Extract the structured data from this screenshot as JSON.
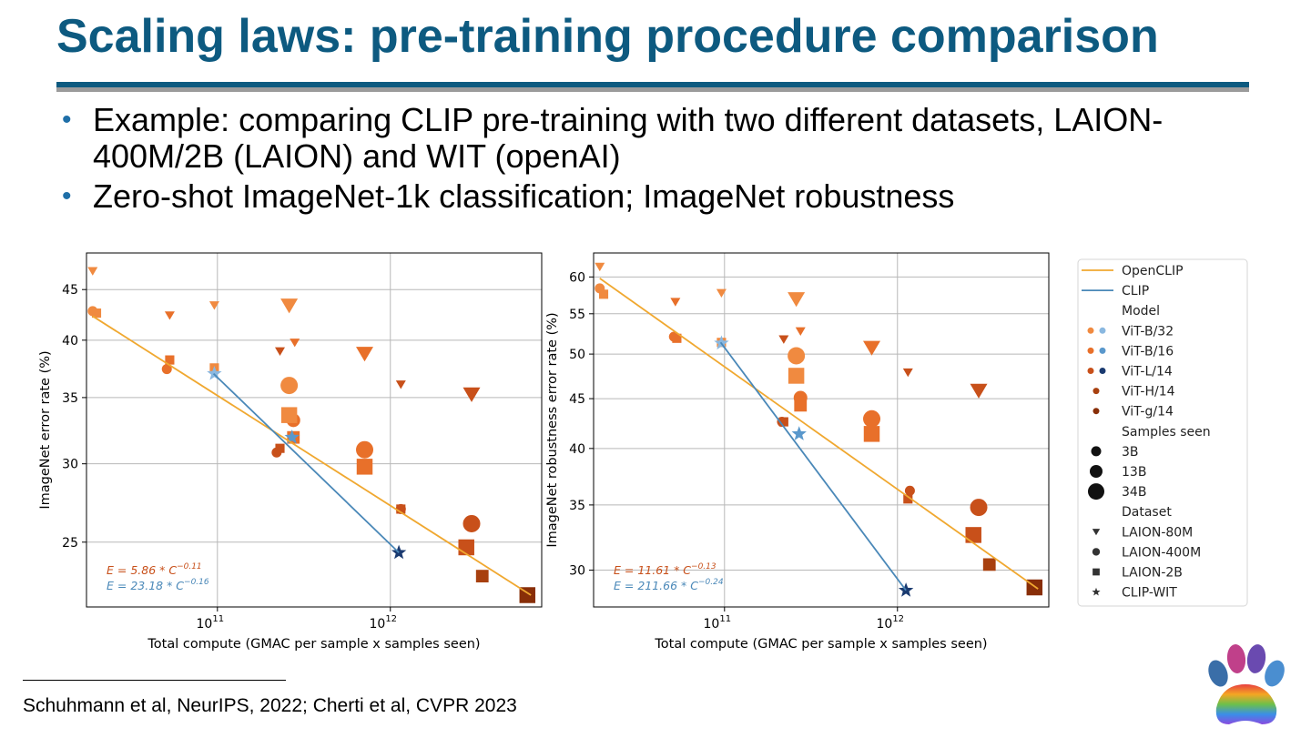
{
  "slide": {
    "title": "Scaling laws: pre-training procedure comparison",
    "bullets": [
      "Example: comparing CLIP pre-training with two different datasets, LAION-400M/2B (LAION) and WIT (openAI)",
      "Zero-shot ImageNet-1k classification; ImageNet robustness"
    ],
    "citation": "Schuhmann et al, NeurIPS, 2022; Cherti et al, CVPR 2023",
    "logo_icon": "rainbow-paw-logo-icon"
  },
  "colors": {
    "title": "#0d5a80",
    "openclip": "#f0a830",
    "clip": "#4a88b8",
    "vit_b32": "#f08a40",
    "vit_b16": "#e8702a",
    "vit_l14": "#c8501a",
    "vit_h14": "#a8400f",
    "vit_g14": "#882e08",
    "clip_b32": "#8ab8e0",
    "clip_b16": "#5a98cc",
    "clip_l14": "#1a3a70"
  },
  "chart_data": [
    {
      "type": "scatter",
      "title": "",
      "xlabel": "Total compute (GMAC per sample x samples seen)",
      "ylabel": "ImageNet error rate (%)",
      "xscale": "log",
      "yscale": "log",
      "xlim": [
        17500000000.0,
        7500000000000.0
      ],
      "ylim": [
        21.5,
        49
      ],
      "xticks": [
        {
          "v": 100000000000.0,
          "b": "10",
          "e": "11"
        },
        {
          "v": 1000000000000.0,
          "b": "10",
          "e": "12"
        }
      ],
      "yticks": [
        25,
        30,
        35,
        40,
        45
      ],
      "grid": true,
      "fits": [
        {
          "name": "OpenCLIP",
          "label_prefix": "E = 5.86 * C",
          "exponent": "−0.11",
          "from": [
            19000000000.0,
            42.3
          ],
          "to": [
            6500000000000.0,
            22.1
          ]
        },
        {
          "name": "CLIP",
          "label_prefix": "E = 23.18 * C",
          "exponent": "−0.16",
          "from": [
            95000000000.0,
            37.0
          ],
          "to": [
            1120000000000.0,
            24.4
          ]
        }
      ],
      "points": [
        {
          "x": 19000000000.0,
          "y": 47.0,
          "m": "v",
          "model": "ViT-B/32",
          "samples": "3B",
          "dataset": "LAION-80M"
        },
        {
          "x": 53000000000.0,
          "y": 42.4,
          "m": "v",
          "model": "ViT-B/16",
          "samples": "3B",
          "dataset": "LAION-80M"
        },
        {
          "x": 96000000000.0,
          "y": 43.4,
          "m": "v",
          "model": "ViT-B/32",
          "samples": "3B",
          "dataset": "LAION-80M"
        },
        {
          "x": 260000000000.0,
          "y": 43.4,
          "m": "v",
          "model": "ViT-B/32",
          "samples": "34B",
          "dataset": "LAION-80M"
        },
        {
          "x": 230000000000.0,
          "y": 39.0,
          "m": "v",
          "model": "ViT-L/14",
          "samples": "3B",
          "dataset": "LAION-80M"
        },
        {
          "x": 280000000000.0,
          "y": 39.8,
          "m": "v",
          "model": "ViT-B/16",
          "samples": "3B",
          "dataset": "LAION-80M"
        },
        {
          "x": 710000000000.0,
          "y": 38.8,
          "m": "v",
          "model": "ViT-B/16",
          "samples": "34B",
          "dataset": "LAION-80M"
        },
        {
          "x": 1150000000000.0,
          "y": 36.1,
          "m": "v",
          "model": "ViT-L/14",
          "samples": "3B",
          "dataset": "LAION-80M"
        },
        {
          "x": 2950000000000.0,
          "y": 35.3,
          "m": "v",
          "model": "ViT-L/14",
          "samples": "34B",
          "dataset": "LAION-80M"
        },
        {
          "x": 19000000000.0,
          "y": 42.8,
          "m": "o",
          "model": "ViT-B/32",
          "samples": "3B",
          "dataset": "LAION-400M"
        },
        {
          "x": 51000000000.0,
          "y": 37.4,
          "m": "o",
          "model": "ViT-B/16",
          "samples": "3B",
          "dataset": "LAION-400M"
        },
        {
          "x": 220000000000.0,
          "y": 30.8,
          "m": "o",
          "model": "ViT-L/14",
          "samples": "3B",
          "dataset": "LAION-400M"
        },
        {
          "x": 260000000000.0,
          "y": 36.0,
          "m": "o",
          "model": "ViT-B/32",
          "samples": "34B",
          "dataset": "LAION-400M"
        },
        {
          "x": 275000000000.0,
          "y": 33.2,
          "m": "o",
          "model": "ViT-B/16",
          "samples": "13B",
          "dataset": "LAION-400M"
        },
        {
          "x": 710000000000.0,
          "y": 31.0,
          "m": "o",
          "model": "ViT-B/16",
          "samples": "34B",
          "dataset": "LAION-400M"
        },
        {
          "x": 1150000000000.0,
          "y": 27.0,
          "m": "o",
          "model": "ViT-L/14",
          "samples": "3B",
          "dataset": "LAION-400M"
        },
        {
          "x": 2950000000000.0,
          "y": 26.1,
          "m": "o",
          "model": "ViT-L/14",
          "samples": "34B",
          "dataset": "LAION-400M"
        },
        {
          "x": 20000000000.0,
          "y": 42.6,
          "m": "s",
          "model": "ViT-B/32",
          "samples": "3B",
          "dataset": "LAION-2B"
        },
        {
          "x": 53000000000.0,
          "y": 38.2,
          "m": "s",
          "model": "ViT-B/16",
          "samples": "3B",
          "dataset": "LAION-2B"
        },
        {
          "x": 96000000000.0,
          "y": 37.5,
          "m": "s",
          "model": "ViT-B/32",
          "samples": "3B",
          "dataset": "LAION-2B"
        },
        {
          "x": 230000000000.0,
          "y": 31.1,
          "m": "s",
          "model": "ViT-L/14",
          "samples": "3B",
          "dataset": "LAION-2B"
        },
        {
          "x": 260000000000.0,
          "y": 33.6,
          "m": "s",
          "model": "ViT-B/32",
          "samples": "34B",
          "dataset": "LAION-2B"
        },
        {
          "x": 275000000000.0,
          "y": 31.9,
          "m": "s",
          "model": "ViT-B/16",
          "samples": "13B",
          "dataset": "LAION-2B"
        },
        {
          "x": 710000000000.0,
          "y": 29.8,
          "m": "s",
          "model": "ViT-B/16",
          "samples": "34B",
          "dataset": "LAION-2B"
        },
        {
          "x": 1150000000000.0,
          "y": 27.0,
          "m": "s",
          "model": "ViT-L/14",
          "samples": "3B",
          "dataset": "LAION-2B"
        },
        {
          "x": 2750000000000.0,
          "y": 24.7,
          "m": "s",
          "model": "ViT-L/14",
          "samples": "34B",
          "dataset": "LAION-2B"
        },
        {
          "x": 3400000000000.0,
          "y": 23.1,
          "m": "s",
          "model": "ViT-H/14",
          "samples": "13B",
          "dataset": "LAION-2B"
        },
        {
          "x": 6200000000000.0,
          "y": 22.1,
          "m": "s",
          "model": "ViT-g/14",
          "samples": "34B",
          "dataset": "LAION-2B"
        },
        {
          "x": 96000000000.0,
          "y": 37.0,
          "m": "*",
          "model": "ViT-B/32",
          "samples": "13B",
          "dataset": "CLIP-WIT"
        },
        {
          "x": 270000000000.0,
          "y": 31.9,
          "m": "*",
          "model": "ViT-B/16",
          "samples": "13B",
          "dataset": "CLIP-WIT"
        },
        {
          "x": 1120000000000.0,
          "y": 24.4,
          "m": "*",
          "model": "ViT-L/14",
          "samples": "13B",
          "dataset": "CLIP-WIT"
        }
      ]
    },
    {
      "type": "scatter",
      "title": "",
      "xlabel": "Total compute (GMAC per sample x samples seen)",
      "ylabel": "ImageNet robustness error rate (%)",
      "xscale": "log",
      "yscale": "log",
      "xlim": [
        17500000000.0,
        7500000000000.0
      ],
      "ylim": [
        27.5,
        63.5
      ],
      "xticks": [
        {
          "v": 100000000000.0,
          "b": "10",
          "e": "11"
        },
        {
          "v": 1000000000000.0,
          "b": "10",
          "e": "12"
        }
      ],
      "yticks": [
        30,
        35,
        40,
        45,
        50,
        55,
        60
      ],
      "grid": true,
      "fits": [
        {
          "name": "OpenCLIP",
          "label_prefix": "E = 11.61 * C",
          "exponent": "−0.13",
          "from": [
            19000000000.0,
            59.8
          ],
          "to": [
            6500000000000.0,
            28.7
          ]
        },
        {
          "name": "CLIP",
          "label_prefix": "E = 211.66 * C",
          "exponent": "−0.24",
          "from": [
            95000000000.0,
            51.4
          ],
          "to": [
            1120000000000.0,
            28.6
          ]
        }
      ],
      "points": [
        {
          "x": 19000000000.0,
          "y": 61.5,
          "m": "v",
          "model": "ViT-B/32",
          "samples": "3B",
          "dataset": "LAION-80M"
        },
        {
          "x": 52000000000.0,
          "y": 56.6,
          "m": "v",
          "model": "ViT-B/16",
          "samples": "3B",
          "dataset": "LAION-80M"
        },
        {
          "x": 96000000000.0,
          "y": 57.8,
          "m": "v",
          "model": "ViT-B/32",
          "samples": "3B",
          "dataset": "LAION-80M"
        },
        {
          "x": 260000000000.0,
          "y": 57.0,
          "m": "v",
          "model": "ViT-B/32",
          "samples": "34B",
          "dataset": "LAION-80M"
        },
        {
          "x": 220000000000.0,
          "y": 51.8,
          "m": "v",
          "model": "ViT-L/14",
          "samples": "3B",
          "dataset": "LAION-80M"
        },
        {
          "x": 275000000000.0,
          "y": 52.8,
          "m": "v",
          "model": "ViT-B/16",
          "samples": "3B",
          "dataset": "LAION-80M"
        },
        {
          "x": 710000000000.0,
          "y": 50.8,
          "m": "v",
          "model": "ViT-B/16",
          "samples": "34B",
          "dataset": "LAION-80M"
        },
        {
          "x": 1150000000000.0,
          "y": 47.9,
          "m": "v",
          "model": "ViT-L/14",
          "samples": "3B",
          "dataset": "LAION-80M"
        },
        {
          "x": 2950000000000.0,
          "y": 45.9,
          "m": "v",
          "model": "ViT-L/14",
          "samples": "34B",
          "dataset": "LAION-80M"
        },
        {
          "x": 19000000000.0,
          "y": 58.4,
          "m": "o",
          "model": "ViT-B/32",
          "samples": "3B",
          "dataset": "LAION-400M"
        },
        {
          "x": 51000000000.0,
          "y": 52.1,
          "m": "o",
          "model": "ViT-B/16",
          "samples": "3B",
          "dataset": "LAION-400M"
        },
        {
          "x": 215000000000.0,
          "y": 42.6,
          "m": "o",
          "model": "ViT-L/14",
          "samples": "3B",
          "dataset": "LAION-400M"
        },
        {
          "x": 260000000000.0,
          "y": 49.8,
          "m": "o",
          "model": "ViT-B/32",
          "samples": "34B",
          "dataset": "LAION-400M"
        },
        {
          "x": 275000000000.0,
          "y": 45.1,
          "m": "o",
          "model": "ViT-B/16",
          "samples": "13B",
          "dataset": "LAION-400M"
        },
        {
          "x": 710000000000.0,
          "y": 42.9,
          "m": "o",
          "model": "ViT-B/16",
          "samples": "34B",
          "dataset": "LAION-400M"
        },
        {
          "x": 1180000000000.0,
          "y": 36.2,
          "m": "o",
          "model": "ViT-L/14",
          "samples": "3B",
          "dataset": "LAION-400M"
        },
        {
          "x": 2950000000000.0,
          "y": 34.8,
          "m": "o",
          "model": "ViT-L/14",
          "samples": "34B",
          "dataset": "LAION-400M"
        },
        {
          "x": 20000000000.0,
          "y": 57.6,
          "m": "s",
          "model": "ViT-B/32",
          "samples": "3B",
          "dataset": "LAION-2B"
        },
        {
          "x": 53000000000.0,
          "y": 51.9,
          "m": "s",
          "model": "ViT-B/16",
          "samples": "3B",
          "dataset": "LAION-2B"
        },
        {
          "x": 96000000000.0,
          "y": 51.4,
          "m": "s",
          "model": "ViT-B/32",
          "samples": "3B",
          "dataset": "LAION-2B"
        },
        {
          "x": 220000000000.0,
          "y": 42.6,
          "m": "s",
          "model": "ViT-L/14",
          "samples": "3B",
          "dataset": "LAION-2B"
        },
        {
          "x": 260000000000.0,
          "y": 47.5,
          "m": "s",
          "model": "ViT-B/32",
          "samples": "34B",
          "dataset": "LAION-2B"
        },
        {
          "x": 275000000000.0,
          "y": 44.3,
          "m": "s",
          "model": "ViT-B/16",
          "samples": "13B",
          "dataset": "LAION-2B"
        },
        {
          "x": 710000000000.0,
          "y": 41.4,
          "m": "s",
          "model": "ViT-B/16",
          "samples": "34B",
          "dataset": "LAION-2B"
        },
        {
          "x": 1150000000000.0,
          "y": 35.5,
          "m": "s",
          "model": "ViT-L/14",
          "samples": "3B",
          "dataset": "LAION-2B"
        },
        {
          "x": 2750000000000.0,
          "y": 32.6,
          "m": "s",
          "model": "ViT-L/14",
          "samples": "34B",
          "dataset": "LAION-2B"
        },
        {
          "x": 3400000000000.0,
          "y": 30.4,
          "m": "s",
          "model": "ViT-H/14",
          "samples": "13B",
          "dataset": "LAION-2B"
        },
        {
          "x": 6200000000000.0,
          "y": 28.8,
          "m": "s",
          "model": "ViT-g/14",
          "samples": "34B",
          "dataset": "LAION-2B"
        },
        {
          "x": 96000000000.0,
          "y": 51.3,
          "m": "*",
          "model": "ViT-B/32",
          "samples": "13B",
          "dataset": "CLIP-WIT"
        },
        {
          "x": 270000000000.0,
          "y": 41.4,
          "m": "*",
          "model": "ViT-B/16",
          "samples": "13B",
          "dataset": "CLIP-WIT"
        },
        {
          "x": 1120000000000.0,
          "y": 28.6,
          "m": "*",
          "model": "ViT-L/14",
          "samples": "13B",
          "dataset": "CLIP-WIT"
        }
      ]
    }
  ],
  "legend": {
    "placement": "right",
    "entries": [
      {
        "kind": "line",
        "label": "OpenCLIP",
        "color": "#f0a830"
      },
      {
        "kind": "line",
        "label": "CLIP",
        "color": "#4a88b8"
      },
      {
        "kind": "header",
        "label": "Model"
      },
      {
        "kind": "pair",
        "label": "ViT-B/32",
        "colors": [
          "#f08a40",
          "#8ab8e0"
        ]
      },
      {
        "kind": "pair",
        "label": "ViT-B/16",
        "colors": [
          "#e8702a",
          "#5a98cc"
        ]
      },
      {
        "kind": "pair",
        "label": "ViT-L/14",
        "colors": [
          "#c8501a",
          "#1a3a70"
        ]
      },
      {
        "kind": "dot",
        "label": "ViT-H/14",
        "color": "#a8400f"
      },
      {
        "kind": "dot",
        "label": "ViT-g/14",
        "color": "#882e08"
      },
      {
        "kind": "header",
        "label": "Samples seen"
      },
      {
        "kind": "size",
        "label": "3B",
        "sample_size": "3B"
      },
      {
        "kind": "size",
        "label": "13B",
        "sample_size": "13B"
      },
      {
        "kind": "size",
        "label": "34B",
        "sample_size": "34B"
      },
      {
        "kind": "header",
        "label": "Dataset"
      },
      {
        "kind": "marker",
        "label": "LAION-80M",
        "marker": "v"
      },
      {
        "kind": "marker",
        "label": "LAION-400M",
        "marker": "o"
      },
      {
        "kind": "marker",
        "label": "LAION-2B",
        "marker": "s"
      },
      {
        "kind": "marker",
        "label": "CLIP-WIT",
        "marker": "*"
      }
    ]
  }
}
